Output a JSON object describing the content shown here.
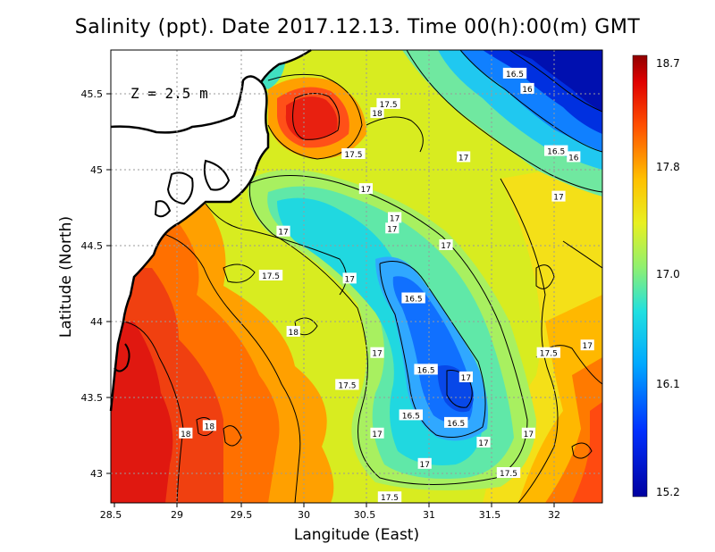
{
  "title": "Salinity (ppt). Date 2017.12.13. Time 00(h):00(m) GMT",
  "depth_label": "Z = 2.5 m",
  "xlabel": "Langitude (East)",
  "ylabel": "Latitude (North)",
  "x_ticks": [
    "28.5",
    "29",
    "29.5",
    "30",
    "30.5",
    "31",
    "31.5",
    "32"
  ],
  "y_ticks": [
    "45.5",
    "45",
    "44.5",
    "44",
    "43.5",
    "43"
  ],
  "colorbar": {
    "labels": [
      "18.7",
      "17.8",
      "17.0",
      "16.1",
      "15.2"
    ],
    "min": 15.2,
    "max": 18.7
  },
  "contour_labels": [
    {
      "text": "16.5",
      "lon": 31.7,
      "lat": 45.63
    },
    {
      "text": "16",
      "lon": 31.8,
      "lat": 45.53
    },
    {
      "text": "17.5",
      "lon": 30.69,
      "lat": 45.43
    },
    {
      "text": "18",
      "lon": 30.6,
      "lat": 45.37
    },
    {
      "text": "17.5",
      "lon": 30.41,
      "lat": 45.1
    },
    {
      "text": "17",
      "lon": 31.29,
      "lat": 45.08
    },
    {
      "text": "16.5",
      "lon": 32.03,
      "lat": 45.12
    },
    {
      "text": "16",
      "lon": 32.17,
      "lat": 45.08
    },
    {
      "text": "17",
      "lon": 30.51,
      "lat": 44.87
    },
    {
      "text": "17",
      "lon": 32.05,
      "lat": 44.82
    },
    {
      "text": "17",
      "lon": 30.74,
      "lat": 44.68
    },
    {
      "text": "17",
      "lon": 29.85,
      "lat": 44.59
    },
    {
      "text": "17",
      "lon": 30.72,
      "lat": 44.61
    },
    {
      "text": "17",
      "lon": 31.15,
      "lat": 44.5
    },
    {
      "text": "17.5",
      "lon": 29.75,
      "lat": 44.3
    },
    {
      "text": "17",
      "lon": 30.38,
      "lat": 44.28
    },
    {
      "text": "16.5",
      "lon": 30.89,
      "lat": 44.15
    },
    {
      "text": "18",
      "lon": 29.93,
      "lat": 43.93
    },
    {
      "text": "17",
      "lon": 32.28,
      "lat": 43.84
    },
    {
      "text": "17.5",
      "lon": 31.97,
      "lat": 43.79
    },
    {
      "text": "17",
      "lon": 30.6,
      "lat": 43.79
    },
    {
      "text": "16.5",
      "lon": 30.99,
      "lat": 43.68
    },
    {
      "text": "17",
      "lon": 31.31,
      "lat": 43.63
    },
    {
      "text": "17.5",
      "lon": 30.36,
      "lat": 43.58
    },
    {
      "text": "16.5",
      "lon": 30.87,
      "lat": 43.38
    },
    {
      "text": "18",
      "lon": 29.26,
      "lat": 43.31
    },
    {
      "text": "16.5",
      "lon": 31.23,
      "lat": 43.33
    },
    {
      "text": "18",
      "lon": 29.07,
      "lat": 43.26
    },
    {
      "text": "17",
      "lon": 30.6,
      "lat": 43.26
    },
    {
      "text": "17",
      "lon": 31.45,
      "lat": 43.2
    },
    {
      "text": "17",
      "lon": 31.81,
      "lat": 43.26
    },
    {
      "text": "17",
      "lon": 30.98,
      "lat": 43.06
    },
    {
      "text": "17.5",
      "lon": 31.65,
      "lat": 43.0
    },
    {
      "text": "17.5",
      "lon": 30.7,
      "lat": 42.84
    }
  ]
}
